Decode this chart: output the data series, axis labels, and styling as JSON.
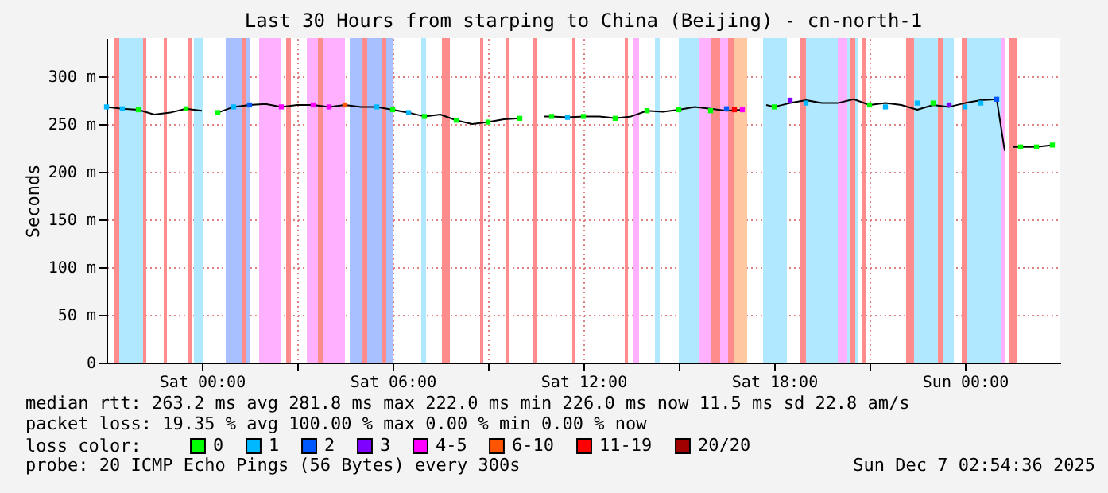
{
  "chart_data": {
    "type": "line",
    "title": "Last 30 Hours from starping to China (Beijing) - cn-north-1",
    "ylabel": "Seconds",
    "xlim": [
      "2025-12-05T21:00",
      "2025-12-07T03:00"
    ],
    "xticks": [
      {
        "value": "2025-12-06T00:00",
        "label": "Sat 00:00"
      },
      {
        "value": "2025-12-06T03:00",
        "label": null
      },
      {
        "value": "2025-12-06T06:00",
        "label": "Sat 06:00"
      },
      {
        "value": "2025-12-06T09:00",
        "label": null
      },
      {
        "value": "2025-12-06T12:00",
        "label": "Sat 12:00"
      },
      {
        "value": "2025-12-06T15:00",
        "label": null
      },
      {
        "value": "2025-12-06T18:00",
        "label": "Sat 18:00"
      },
      {
        "value": "2025-12-06T21:00",
        "label": null
      },
      {
        "value": "2025-12-07T00:00",
        "label": "Sun 00:00"
      }
    ],
    "ylim": [
      0,
      340
    ],
    "yticks": [
      0,
      {
        "value": 50,
        "label": "50 m"
      },
      {
        "value": 100,
        "label": "100 m"
      },
      {
        "value": 150,
        "label": "150 m"
      },
      {
        "value": 200,
        "label": "200 m"
      },
      {
        "value": 250,
        "label": "250 m"
      },
      {
        "value": 300,
        "label": "300 m"
      }
    ],
    "grid": true,
    "legend": "bottom",
    "legend_title": "loss color:",
    "series": [
      {
        "color": "#000000",
        "marker": "none",
        "x": [
          "2025-12-05T21:00",
          "2025-12-05T21:30",
          "2025-12-05T22:00",
          "2025-12-05T22:30",
          "2025-12-05T23:00",
          "2025-12-05T23:30",
          "2025-12-06T00:00",
          "2025-12-06T00:15",
          "2025-12-06T00:30",
          "2025-12-06T01:00",
          "2025-12-06T01:30",
          "2025-12-06T02:00",
          "2025-12-06T02:30",
          "2025-12-06T03:00",
          "2025-12-06T03:30",
          "2025-12-06T04:00",
          "2025-12-06T04:30",
          "2025-12-06T05:00",
          "2025-12-06T05:30",
          "2025-12-06T06:00",
          "2025-12-06T06:30",
          "2025-12-06T07:00",
          "2025-12-06T07:30",
          "2025-12-06T08:00",
          "2025-12-06T08:30",
          "2025-12-06T09:00",
          "2025-12-06T09:30",
          "2025-12-06T10:00",
          "2025-12-06T10:15",
          "2025-12-06T10:45",
          "2025-12-06T11:00",
          "2025-12-06T11:30",
          "2025-12-06T12:00",
          "2025-12-06T12:30",
          "2025-12-06T13:00",
          "2025-12-06T13:30",
          "2025-12-06T14:00",
          "2025-12-06T14:30",
          "2025-12-06T15:00",
          "2025-12-06T15:30",
          "2025-12-06T16:00",
          "2025-12-06T16:30",
          "2025-12-06T17:00",
          "2025-12-06T17:15",
          "2025-12-06T17:45",
          "2025-12-06T18:00",
          "2025-12-06T18:30",
          "2025-12-06T19:00",
          "2025-12-06T19:30",
          "2025-12-06T20:00",
          "2025-12-06T20:30",
          "2025-12-06T21:00",
          "2025-12-06T21:30",
          "2025-12-06T22:00",
          "2025-12-06T22:30",
          "2025-12-06T23:00",
          "2025-12-06T23:30",
          "2025-12-07T00:00",
          "2025-12-07T00:30",
          "2025-12-07T01:00",
          "2025-12-07T01:15",
          "2025-12-07T01:20",
          "2025-12-07T01:30",
          "2025-12-07T01:45",
          "2025-12-07T02:15",
          "2025-12-07T02:45"
        ],
        "values": [
          268,
          266,
          265,
          260,
          262,
          266,
          264,
          null,
          262,
          268,
          270,
          271,
          268,
          270,
          270,
          268,
          270,
          268,
          268,
          265,
          262,
          258,
          260,
          254,
          250,
          252,
          255,
          256,
          null,
          258,
          258,
          257,
          258,
          258,
          256,
          258,
          264,
          263,
          265,
          268,
          266,
          264,
          265,
          null,
          270,
          268,
          272,
          275,
          272,
          272,
          276,
          270,
          272,
          270,
          265,
          270,
          268,
          272,
          275,
          276,
          222,
          null,
          226,
          226,
          226,
          228
        ]
      },
      {
        "type": "scatter",
        "name": "0",
        "color": "#00ff00",
        "x": [
          "2025-12-05T22:00",
          "2025-12-05T23:30",
          "2025-12-06T00:30",
          "2025-12-06T06:00",
          "2025-12-06T07:00",
          "2025-12-06T08:00",
          "2025-12-06T09:00",
          "2025-12-06T10:00",
          "2025-12-06T11:00",
          "2025-12-06T12:00",
          "2025-12-06T13:00",
          "2025-12-06T14:00",
          "2025-12-06T15:00",
          "2025-12-06T16:00",
          "2025-12-06T18:00",
          "2025-12-06T21:00",
          "2025-12-06T23:00",
          "2025-12-07T01:45",
          "2025-12-07T02:15",
          "2025-12-07T02:45"
        ],
        "values": [
          265,
          266,
          262,
          265,
          258,
          254,
          252,
          256,
          258,
          258,
          256,
          264,
          265,
          264,
          268,
          270,
          272,
          226,
          226,
          228
        ]
      },
      {
        "type": "scatter",
        "name": "1",
        "color": "#00b8ff",
        "x": [
          "2025-12-05T21:00",
          "2025-12-05T21:30",
          "2025-12-06T01:00",
          "2025-12-06T05:30",
          "2025-12-06T06:30",
          "2025-12-06T11:30",
          "2025-12-06T19:00",
          "2025-12-06T21:30",
          "2025-12-06T22:30",
          "2025-12-07T00:00",
          "2025-12-07T00:30"
        ],
        "values": [
          268,
          266,
          268,
          268,
          262,
          257,
          272,
          268,
          272,
          268,
          272
        ]
      },
      {
        "type": "scatter",
        "name": "2",
        "color": "#0059ff",
        "x": [
          "2025-12-06T01:30",
          "2025-12-06T16:30",
          "2025-12-07T01:00"
        ],
        "values": [
          270,
          266,
          276
        ]
      },
      {
        "type": "scatter",
        "name": "3",
        "color": "#7e00ff",
        "x": [
          "2025-12-06T18:30",
          "2025-12-06T23:30"
        ],
        "values": [
          275,
          270
        ]
      },
      {
        "type": "scatter",
        "name": "4-5",
        "color": "#ff00ff",
        "x": [
          "2025-12-06T02:30",
          "2025-12-06T03:30",
          "2025-12-06T04:00",
          "2025-12-06T17:00"
        ],
        "values": [
          268,
          270,
          268,
          265
        ]
      },
      {
        "type": "scatter",
        "name": "6-10",
        "color": "#ff5500",
        "x": [
          "2025-12-06T04:30"
        ],
        "values": [
          270
        ]
      },
      {
        "type": "scatter",
        "name": "11-19",
        "color": "#ff0000",
        "x": [
          "2025-12-06T16:45"
        ],
        "values": [
          265
        ]
      },
      {
        "type": "scatter",
        "name": "20/20",
        "color": "#a10000"
      }
    ],
    "bands": [
      {
        "axis": "x",
        "from": "2025-12-05T21:24",
        "to": "2025-12-05T22:15",
        "color": "#b0e8ff"
      },
      {
        "axis": "x",
        "from": "2025-12-05T21:15",
        "to": "2025-12-05T21:24",
        "color": "#ff8c8c"
      },
      {
        "axis": "x",
        "from": "2025-12-05T22:09",
        "to": "2025-12-05T22:15",
        "color": "#ff8c8c"
      },
      {
        "axis": "x",
        "from": "2025-12-05T22:48",
        "to": "2025-12-05T22:54",
        "color": "#ff8c8c"
      },
      {
        "axis": "x",
        "from": "2025-12-05T23:33",
        "to": "2025-12-05T23:42",
        "color": "#ff8c8c"
      },
      {
        "axis": "x",
        "from": "2025-12-05T23:45",
        "to": "2025-12-06T00:03",
        "color": "#b0e8ff"
      },
      {
        "axis": "x",
        "from": "2025-12-06T00:45",
        "to": "2025-12-06T01:30",
        "color": "#a8c0ff"
      },
      {
        "axis": "x",
        "from": "2025-12-06T01:15",
        "to": "2025-12-06T01:24",
        "color": "#ff8c8c"
      },
      {
        "axis": "x",
        "from": "2025-12-06T01:48",
        "to": "2025-12-06T02:30",
        "color": "#ffb0ff"
      },
      {
        "axis": "x",
        "from": "2025-12-06T02:39",
        "to": "2025-12-06T02:48",
        "color": "#ff8c8c"
      },
      {
        "axis": "x",
        "from": "2025-12-06T03:18",
        "to": "2025-12-06T04:30",
        "color": "#ffb0ff"
      },
      {
        "axis": "x",
        "from": "2025-12-06T03:39",
        "to": "2025-12-06T03:48",
        "color": "#ff8c8c"
      },
      {
        "axis": "x",
        "from": "2025-12-06T04:39",
        "to": "2025-12-06T06:00",
        "color": "#a8c0ff"
      },
      {
        "axis": "x",
        "from": "2025-12-06T05:03",
        "to": "2025-12-06T05:12",
        "color": "#ff8c8c"
      },
      {
        "axis": "x",
        "from": "2025-12-06T05:39",
        "to": "2025-12-06T05:48",
        "color": "#ff8c8c"
      },
      {
        "axis": "x",
        "from": "2025-12-06T06:54",
        "to": "2025-12-06T07:03",
        "color": "#b0e8ff"
      },
      {
        "axis": "x",
        "from": "2025-12-06T07:33",
        "to": "2025-12-06T07:48",
        "color": "#ff8c8c"
      },
      {
        "axis": "x",
        "from": "2025-12-06T08:45",
        "to": "2025-12-06T08:51",
        "color": "#ff8c8c"
      },
      {
        "axis": "x",
        "from": "2025-12-06T09:33",
        "to": "2025-12-06T09:39",
        "color": "#ff8c8c"
      },
      {
        "axis": "x",
        "from": "2025-12-06T10:24",
        "to": "2025-12-06T10:33",
        "color": "#ff8c8c"
      },
      {
        "axis": "x",
        "from": "2025-12-06T11:39",
        "to": "2025-12-06T11:45",
        "color": "#ff8c8c"
      },
      {
        "axis": "x",
        "from": "2025-12-06T13:18",
        "to": "2025-12-06T13:24",
        "color": "#ff8c8c"
      },
      {
        "axis": "x",
        "from": "2025-12-06T13:33",
        "to": "2025-12-06T13:45",
        "color": "#ffb0ff"
      },
      {
        "axis": "x",
        "from": "2025-12-06T14:15",
        "to": "2025-12-06T14:24",
        "color": "#b0e8ff"
      },
      {
        "axis": "x",
        "from": "2025-12-06T15:00",
        "to": "2025-12-06T15:39",
        "color": "#b0e8ff"
      },
      {
        "axis": "x",
        "from": "2025-12-06T15:39",
        "to": "2025-12-06T16:00",
        "color": "#ffb0ff"
      },
      {
        "axis": "x",
        "from": "2025-12-06T16:00",
        "to": "2025-12-06T16:18",
        "color": "#ff8c8c"
      },
      {
        "axis": "x",
        "from": "2025-12-06T16:18",
        "to": "2025-12-06T16:33",
        "color": "#ffb0ff"
      },
      {
        "axis": "x",
        "from": "2025-12-06T16:33",
        "to": "2025-12-06T16:45",
        "color": "#ff8c8c"
      },
      {
        "axis": "x",
        "from": "2025-12-06T16:45",
        "to": "2025-12-06T17:09",
        "color": "#ffc8a0"
      },
      {
        "axis": "x",
        "from": "2025-12-06T17:39",
        "to": "2025-12-06T18:24",
        "color": "#b0e8ff"
      },
      {
        "axis": "x",
        "from": "2025-12-06T18:48",
        "to": "2025-12-06T19:00",
        "color": "#ff8c8c"
      },
      {
        "axis": "x",
        "from": "2025-12-06T19:00",
        "to": "2025-12-06T20:39",
        "color": "#b0e8ff"
      },
      {
        "axis": "x",
        "from": "2025-12-06T20:00",
        "to": "2025-12-06T20:18",
        "color": "#ffb0ff"
      },
      {
        "axis": "x",
        "from": "2025-12-06T20:24",
        "to": "2025-12-06T20:33",
        "color": "#ff8c8c"
      },
      {
        "axis": "x",
        "from": "2025-12-06T20:45",
        "to": "2025-12-06T20:54",
        "color": "#ff8c8c"
      },
      {
        "axis": "x",
        "from": "2025-12-06T22:09",
        "to": "2025-12-06T22:24",
        "color": "#ff8c8c"
      },
      {
        "axis": "x",
        "from": "2025-12-06T22:24",
        "to": "2025-12-06T23:39",
        "color": "#b0e8ff"
      },
      {
        "axis": "x",
        "from": "2025-12-06T23:09",
        "to": "2025-12-06T23:18",
        "color": "#ff8c8c"
      },
      {
        "axis": "x",
        "from": "2025-12-06T23:54",
        "to": "2025-12-07T00:03",
        "color": "#ff8c8c"
      },
      {
        "axis": "x",
        "from": "2025-12-07T00:03",
        "to": "2025-12-07T01:09",
        "color": "#b0e8ff"
      },
      {
        "axis": "x",
        "from": "2025-12-07T01:09",
        "to": "2025-12-07T01:15",
        "color": "#ffb0ff"
      },
      {
        "axis": "x",
        "from": "2025-12-07T01:24",
        "to": "2025-12-07T01:39",
        "color": "#ff8c8c"
      }
    ],
    "annotations": [
      "median rtt: 263.2 ms avg 281.8 ms max 222.0 ms min 226.0 ms now 11.5 ms sd 22.8 am/s",
      "packet loss: 19.35 % avg 100.00 % max 0.00 % min 0.00 % now",
      "probe: 20 ICMP Echo Pings (56 Bytes) every 300s",
      "Sun Dec 7 02:54:36 2025"
    ]
  }
}
